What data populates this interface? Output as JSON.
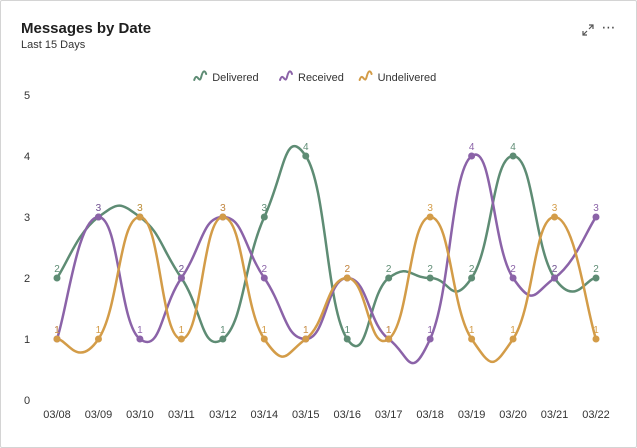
{
  "header": {
    "title": "Messages by Date",
    "subtitle": "Last 15 Days",
    "expand_icon": "expand-icon",
    "more_icon": "more-options-icon",
    "more_glyph": "⋯"
  },
  "chart_data": {
    "type": "line",
    "title": "Messages by Date",
    "subtitle": "Last 15 Days",
    "categories": [
      "03/08",
      "03/09",
      "03/10",
      "03/11",
      "03/12",
      "03/14",
      "03/15",
      "03/16",
      "03/17",
      "03/18",
      "03/19",
      "03/20",
      "03/21",
      "03/22"
    ],
    "ylim": [
      0,
      5
    ],
    "yticks": [
      0,
      1,
      2,
      3,
      4,
      5
    ],
    "grid": false,
    "legend": "top-center",
    "smooth": true,
    "data_labels": true,
    "series": [
      {
        "name": "Delivered",
        "color": "#5e8c74",
        "values": [
          2,
          3,
          3,
          2,
          1,
          3,
          4,
          1,
          2,
          2,
          2,
          4,
          2,
          2
        ]
      },
      {
        "name": "Received",
        "color": "#8b63a8",
        "values": [
          1,
          3,
          1,
          2,
          3,
          2,
          1,
          2,
          1,
          1,
          4,
          2,
          2,
          3
        ]
      },
      {
        "name": "Undelivered",
        "color": "#d39c48",
        "values": [
          1,
          1,
          3,
          1,
          3,
          1,
          1,
          2,
          1,
          3,
          1,
          1,
          3,
          1
        ]
      }
    ]
  }
}
